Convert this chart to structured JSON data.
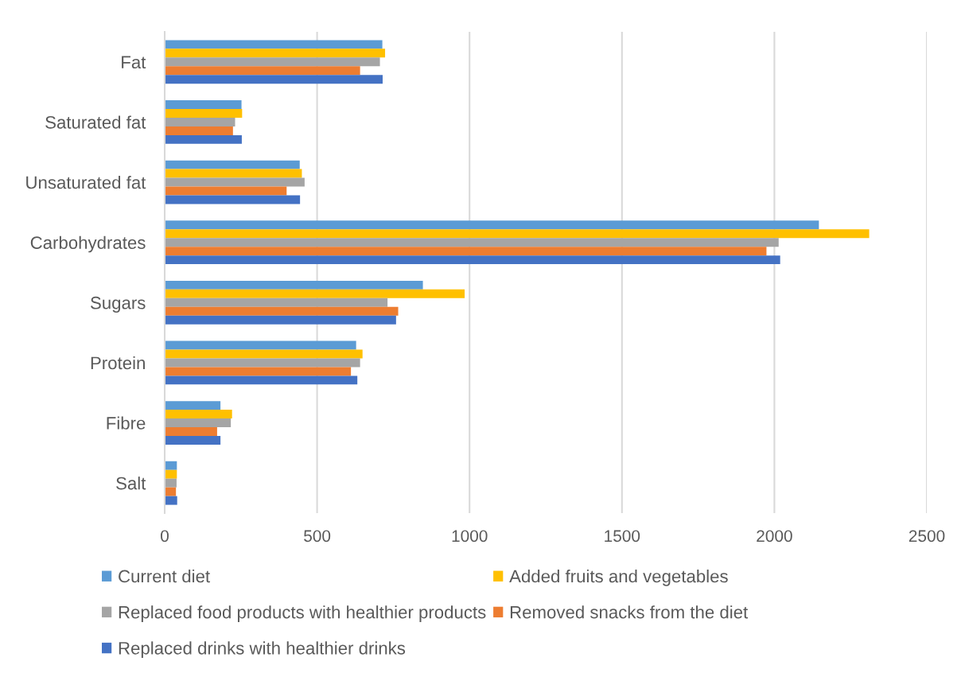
{
  "chart_data": {
    "type": "bar",
    "orientation": "horizontal",
    "categories": [
      "Fat",
      "Saturated fat",
      "Unsaturated fat",
      "Carbohydrates",
      "Sugars",
      "Protein",
      "Fibre",
      "Salt"
    ],
    "series": [
      {
        "name": "Current diet",
        "color": "#5b9bd5",
        "values": [
          714,
          252,
          443,
          2146,
          847,
          628,
          183,
          40
        ]
      },
      {
        "name": "Added fruits and vegetables",
        "color": "#ffc000",
        "values": [
          723,
          254,
          450,
          2311,
          984,
          649,
          221,
          40
        ]
      },
      {
        "name": "Replaced food products with healthier products",
        "color": "#a5a5a5",
        "values": [
          706,
          231,
          459,
          2014,
          731,
          641,
          217,
          39
        ]
      },
      {
        "name": "Removed snacks from the diet",
        "color": "#ed7d31",
        "values": [
          641,
          224,
          400,
          1974,
          766,
          611,
          172,
          37
        ]
      },
      {
        "name": "Replaced drinks with healthier drinks",
        "color": "#4472c4",
        "values": [
          715,
          253,
          444,
          2019,
          759,
          632,
          183,
          41
        ]
      }
    ],
    "xlim": [
      0,
      2500
    ],
    "xticks": [
      0,
      500,
      1000,
      1500,
      2000,
      2500
    ],
    "grid": "x",
    "legend": "bottom"
  }
}
